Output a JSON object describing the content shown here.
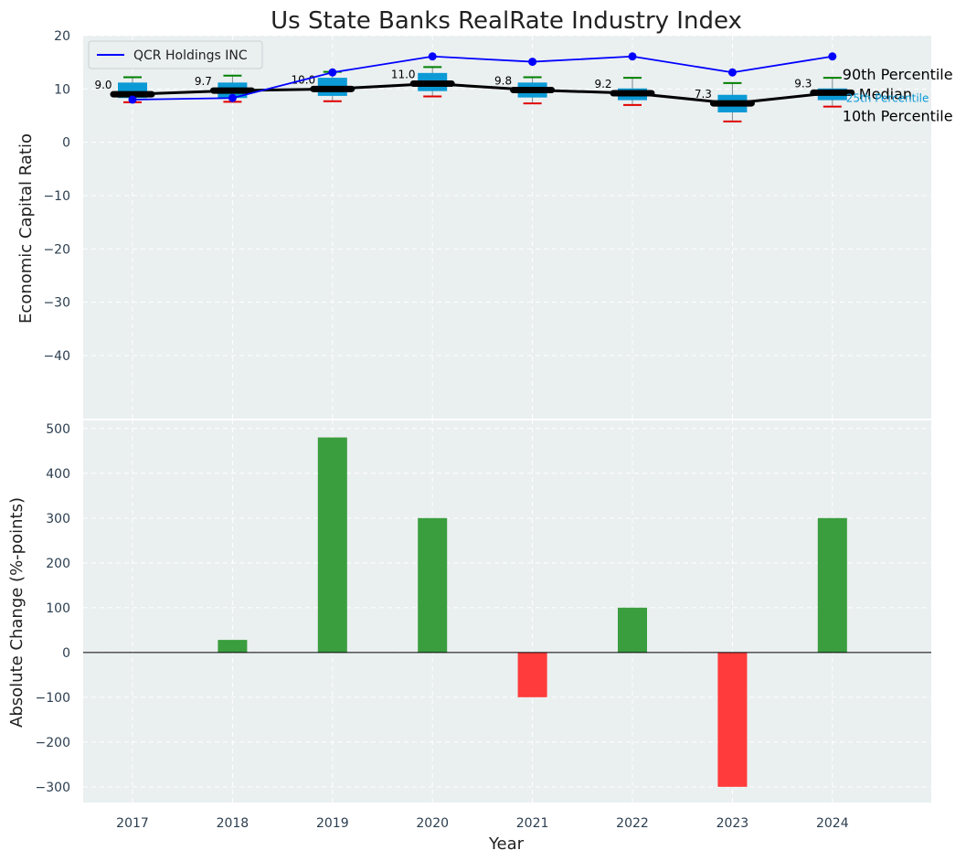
{
  "chart_data": [
    {
      "type": "box+line",
      "title": "Us State Banks RealRate Industry Index",
      "ylabel": "Economic Capital Ratio",
      "ylim": [
        -52,
        20
      ],
      "yticks": [
        20,
        10,
        0,
        -10,
        -20,
        -30,
        -40
      ],
      "categories": [
        "2017",
        "2018",
        "2019",
        "2020",
        "2021",
        "2022",
        "2023",
        "2024"
      ],
      "boxes": {
        "p10": [
          7.5,
          7.6,
          7.7,
          8.6,
          7.3,
          7.0,
          3.9,
          6.7
        ],
        "q1": [
          8.3,
          8.3,
          8.7,
          9.6,
          8.4,
          7.9,
          5.6,
          7.9
        ],
        "median": [
          9.0,
          9.7,
          10.0,
          11.0,
          9.8,
          9.2,
          7.3,
          9.3
        ],
        "q3": [
          11.2,
          11.2,
          12.1,
          13.0,
          11.2,
          10.1,
          8.9,
          10.1
        ],
        "p90": [
          12.2,
          12.5,
          13.2,
          14.1,
          12.2,
          12.1,
          11.1,
          12.1
        ]
      },
      "median_labels": [
        "9.0",
        "9.7",
        "10.0",
        "11.0",
        "9.8",
        "9.2",
        "7.3",
        "9.3"
      ],
      "series": [
        {
          "name": "QCR Holdings INC",
          "values": [
            8.0,
            8.3,
            13.1,
            16.1,
            15.1,
            16.1,
            13.1,
            16.1
          ]
        }
      ],
      "legend_position": "upper-left",
      "annotations": {
        "p90": "90th Percentile",
        "median": "Median",
        "p25": "25th Percentile",
        "p10": "10th Percentile"
      },
      "colors": {
        "background": "#eaeff0",
        "box": "#0b9ad6",
        "median_line": "#000000",
        "series": "#0000ff",
        "p90_whisker": "#008000",
        "p10_whisker": "#e00000",
        "p25_text": "#0b9ad6"
      }
    },
    {
      "type": "bar",
      "ylabel": "Absolute Change (%-points)",
      "xlabel": "Year",
      "ylim": [
        -335,
        520
      ],
      "yticks": [
        500,
        400,
        300,
        200,
        100,
        0,
        -100,
        -200,
        -300
      ],
      "categories": [
        "2017",
        "2018",
        "2019",
        "2020",
        "2021",
        "2022",
        "2023",
        "2024"
      ],
      "values": [
        0,
        28,
        480,
        300,
        -100,
        100,
        -300,
        300
      ],
      "colors": {
        "positive": "#3a9e3e",
        "negative": "#ff3b3b",
        "zero_line": "#000000"
      }
    }
  ]
}
